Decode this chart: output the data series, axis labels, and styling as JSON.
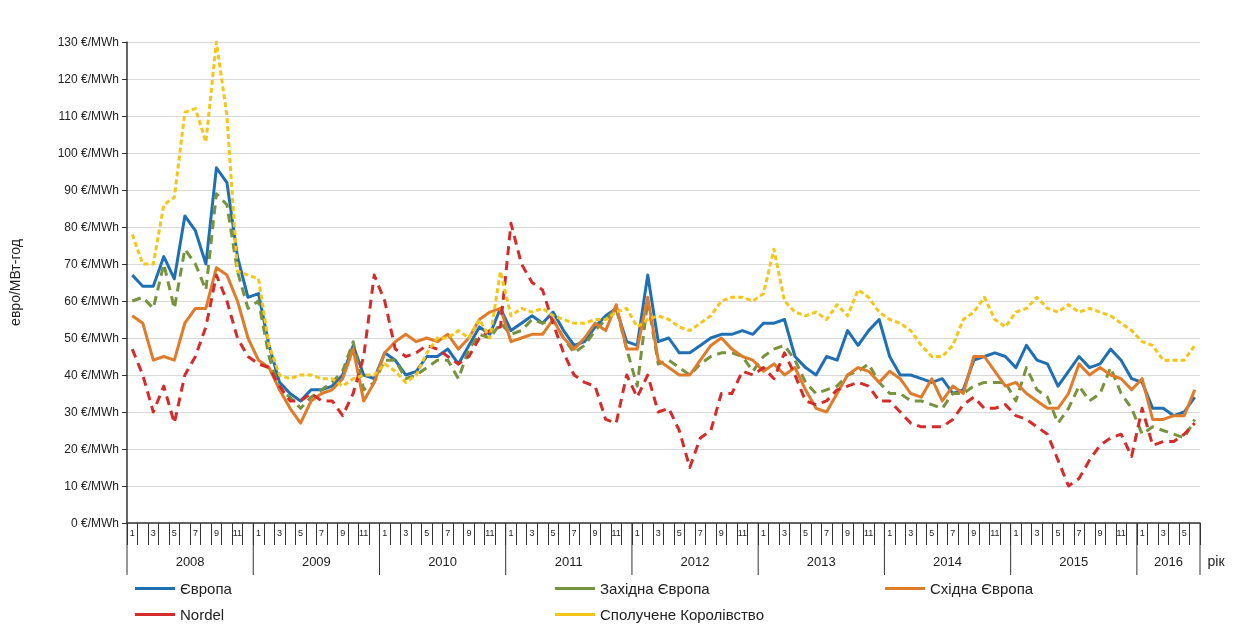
{
  "chart_data": {
    "type": "line",
    "ylabel": "евро/МВт-год",
    "xlabel": "рік",
    "categories": [
      "1",
      null,
      "3",
      null,
      "5",
      null,
      "7",
      null,
      "9",
      null,
      "11",
      null,
      "1",
      null,
      "3",
      null,
      "5",
      null,
      "7",
      null,
      "9",
      null,
      "11",
      null,
      "1",
      null,
      "3",
      null,
      "5",
      null,
      "7",
      null,
      "9",
      null,
      "11",
      null,
      "1",
      null,
      "3",
      null,
      "5",
      null,
      "7",
      null,
      "9",
      null,
      "11",
      null,
      "1",
      null,
      "3",
      null,
      "5",
      null,
      "7",
      null,
      "9",
      null,
      "11",
      null,
      "1",
      null,
      "3",
      null,
      "5",
      null,
      "7",
      null,
      "9",
      null,
      "11",
      null,
      "1",
      null,
      "3",
      null,
      "5",
      null,
      "7",
      null,
      "9",
      null,
      "11",
      null,
      "1",
      null,
      "3",
      null,
      "5",
      null,
      "7",
      null,
      "9",
      null,
      "11",
      null,
      "1",
      null,
      "3",
      null,
      "5",
      null
    ],
    "annotations": [
      "2008",
      "2009",
      "2010",
      "2011",
      "2012",
      "2013",
      "2014",
      "2015",
      "2016"
    ],
    "ylim": [
      0,
      130
    ],
    "yticks": [
      {
        "value": 0,
        "label": "0 €/MWh"
      },
      {
        "value": 10,
        "label": "10 €/MWh"
      },
      {
        "value": 20,
        "label": "20 €/MWh"
      },
      {
        "value": 30,
        "label": "30 €/MWh"
      },
      {
        "value": 40,
        "label": "40 €/MWh"
      },
      {
        "value": 50,
        "label": "50 €/MWh"
      },
      {
        "value": 60,
        "label": "60 €/MWh"
      },
      {
        "value": 70,
        "label": "70 €/MWh"
      },
      {
        "value": 80,
        "label": "80 €/MWh"
      },
      {
        "value": 90,
        "label": "90 €/MWh"
      },
      {
        "value": 100,
        "label": "100 €/MWh"
      },
      {
        "value": 110,
        "label": "110 €/MWh"
      },
      {
        "value": 120,
        "label": "120 €/MWh"
      },
      {
        "value": 130,
        "label": "130 €/MWh"
      }
    ],
    "grid": "y",
    "legend": "bottom",
    "marker": "none",
    "series": [
      {
        "name": "Європа",
        "color": "#1f6fb5",
        "line_style": "solid",
        "values": [
          67,
          64,
          64,
          72,
          66,
          83,
          79,
          70,
          96,
          92,
          72,
          61,
          62,
          48,
          38,
          35,
          33,
          36,
          36,
          37,
          40,
          48,
          40,
          39,
          46,
          44,
          40,
          41,
          45,
          45,
          47,
          43,
          48,
          53,
          51,
          58,
          52,
          54,
          56,
          54,
          57,
          52,
          48,
          49,
          53,
          56,
          58,
          49,
          48,
          67,
          49,
          50,
          46,
          46,
          48,
          50,
          51,
          51,
          52,
          51,
          54,
          54,
          55,
          45,
          42,
          40,
          45,
          44,
          52,
          48,
          52,
          55,
          45,
          40,
          40,
          39,
          38,
          39,
          35,
          36,
          44,
          45,
          46,
          45,
          42,
          48,
          44,
          43,
          37,
          41,
          45,
          42,
          43,
          47,
          44,
          39,
          38,
          31,
          31,
          29,
          30,
          34
        ]
      },
      {
        "name": "Західна Європа",
        "color": "#77933c",
        "line_style": "dashed",
        "values": [
          60,
          61,
          58,
          70,
          58,
          74,
          70,
          63,
          89,
          86,
          68,
          58,
          60,
          45,
          36,
          34,
          31,
          34,
          36,
          38,
          41,
          49,
          36,
          38,
          44,
          44,
          39,
          40,
          42,
          44,
          44,
          39,
          47,
          51,
          50,
          54,
          51,
          52,
          55,
          54,
          55,
          50,
          46,
          48,
          52,
          55,
          58,
          47,
          37,
          60,
          43,
          44,
          42,
          40,
          43,
          45,
          46,
          46,
          45,
          41,
          45,
          47,
          48,
          44,
          38,
          35,
          36,
          37,
          40,
          41,
          43,
          38,
          35,
          35,
          33,
          33,
          32,
          31,
          35,
          35,
          37,
          38,
          38,
          38,
          33,
          42,
          36,
          34,
          27,
          31,
          37,
          33,
          35,
          42,
          35,
          31,
          24,
          26,
          25,
          24,
          23,
          28
        ]
      },
      {
        "name": "Східна Європа",
        "color": "#e07b2a",
        "line_style": "solid",
        "values": [
          56,
          54,
          44,
          45,
          44,
          54,
          58,
          58,
          69,
          67,
          60,
          50,
          44,
          42,
          36,
          31,
          27,
          33,
          35,
          36,
          39,
          47,
          33,
          38,
          46,
          49,
          51,
          49,
          50,
          49,
          51,
          47,
          50,
          55,
          57,
          58,
          49,
          50,
          51,
          51,
          55,
          50,
          47,
          50,
          54,
          52,
          59,
          47,
          47,
          61,
          44,
          42,
          40,
          40,
          44,
          48,
          50,
          47,
          45,
          44,
          41,
          43,
          40,
          42,
          36,
          31,
          30,
          35,
          40,
          42,
          41,
          38,
          41,
          39,
          35,
          34,
          39,
          33,
          37,
          35,
          45,
          45,
          41,
          37,
          38,
          35,
          33,
          31,
          31,
          35,
          43,
          40,
          42,
          40,
          39,
          36,
          39,
          28,
          28,
          29,
          29,
          36
        ]
      },
      {
        "name": "Nordel",
        "color": "#d62b2b",
        "line_style": "dashed",
        "values": [
          47,
          40,
          30,
          37,
          27,
          40,
          45,
          53,
          67,
          60,
          50,
          45,
          43,
          42,
          37,
          33,
          33,
          35,
          33,
          33,
          29,
          35,
          45,
          67,
          60,
          47,
          45,
          46,
          48,
          47,
          45,
          43,
          45,
          50,
          52,
          53,
          81,
          70,
          65,
          63,
          54,
          46,
          40,
          38,
          37,
          28,
          27,
          40,
          34,
          40,
          30,
          31,
          25,
          15,
          23,
          25,
          35,
          35,
          41,
          40,
          42,
          39,
          46,
          40,
          33,
          32,
          33,
          36,
          37,
          38,
          37,
          33,
          33,
          30,
          27,
          26,
          26,
          26,
          28,
          32,
          34,
          31,
          31,
          32,
          29,
          28,
          26,
          24,
          17,
          10,
          12,
          17,
          21,
          23,
          24,
          18,
          31,
          21,
          22,
          22,
          24,
          27
        ]
      },
      {
        "name": "Сполучене Королівство",
        "color": "#f5c518",
        "line_style": "dotted",
        "values": [
          78,
          70,
          70,
          86,
          88,
          111,
          112,
          103,
          130,
          110,
          68,
          67,
          66,
          48,
          40,
          39,
          40,
          40,
          39,
          39,
          37,
          39,
          40,
          40,
          43,
          41,
          38,
          40,
          46,
          50,
          50,
          52,
          50,
          55,
          50,
          68,
          56,
          58,
          57,
          58,
          56,
          55,
          54,
          54,
          55,
          55,
          57,
          58,
          53,
          55,
          56,
          55,
          53,
          52,
          54,
          56,
          60,
          61,
          61,
          60,
          62,
          74,
          60,
          57,
          56,
          57,
          55,
          59,
          56,
          63,
          61,
          57,
          55,
          54,
          52,
          48,
          45,
          45,
          48,
          55,
          57,
          61,
          55,
          53,
          57,
          58,
          61,
          58,
          57,
          59,
          57,
          58,
          57,
          56,
          54,
          52,
          49,
          48,
          44,
          44,
          44,
          48
        ]
      }
    ]
  }
}
